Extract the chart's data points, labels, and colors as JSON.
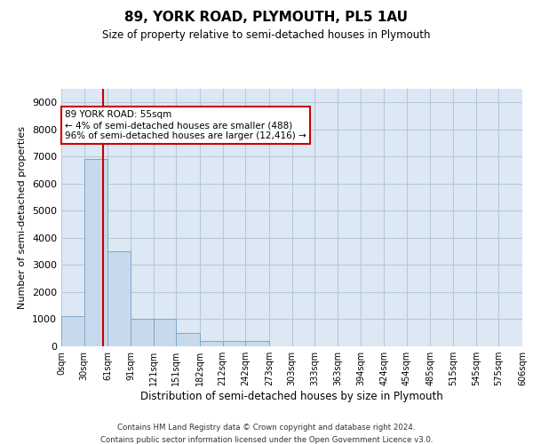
{
  "title": "89, YORK ROAD, PLYMOUTH, PL5 1AU",
  "subtitle": "Size of property relative to semi-detached houses in Plymouth",
  "xlabel": "Distribution of semi-detached houses by size in Plymouth",
  "ylabel": "Number of semi-detached properties",
  "bin_labels": [
    "0sqm",
    "30sqm",
    "61sqm",
    "91sqm",
    "121sqm",
    "151sqm",
    "182sqm",
    "212sqm",
    "242sqm",
    "273sqm",
    "303sqm",
    "333sqm",
    "363sqm",
    "394sqm",
    "424sqm",
    "454sqm",
    "485sqm",
    "515sqm",
    "545sqm",
    "575sqm",
    "606sqm"
  ],
  "bin_edges": [
    0,
    30,
    61,
    91,
    121,
    151,
    182,
    212,
    242,
    273,
    303,
    333,
    363,
    394,
    424,
    454,
    485,
    515,
    545,
    575,
    606
  ],
  "bar_values": [
    1100,
    6900,
    3500,
    1000,
    1000,
    500,
    200,
    200,
    200,
    0,
    0,
    0,
    0,
    0,
    0,
    0,
    0,
    0,
    0,
    0
  ],
  "property_size": 55,
  "pct_smaller": 4,
  "num_smaller": 488,
  "pct_larger": 96,
  "num_larger": 12416,
  "bar_color": "#c9d9ed",
  "bar_edge_color": "#7aa8cc",
  "vline_color": "#cc0000",
  "annotation_box_color": "#cc0000",
  "background_color": "#ffffff",
  "plot_bg_color": "#dce9f5",
  "grid_color": "#b8c8d8",
  "ylim_max": 9500,
  "yticks": [
    0,
    1000,
    2000,
    3000,
    4000,
    5000,
    6000,
    7000,
    8000,
    9000
  ],
  "footer_line1": "Contains HM Land Registry data © Crown copyright and database right 2024.",
  "footer_line2": "Contains public sector information licensed under the Open Government Licence v3.0."
}
